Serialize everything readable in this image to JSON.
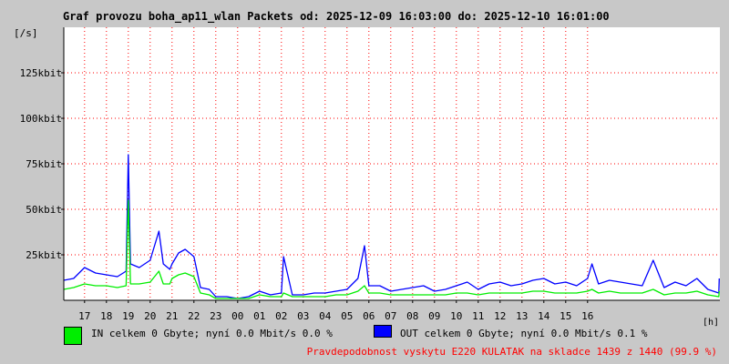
{
  "colors": {
    "in": "#00ee00",
    "out": "#0000ff",
    "footer": "#ff0000",
    "grid": "#ff0000",
    "plot_bg": "#ffffff"
  },
  "header": {
    "title": "Graf provozu boha_ap11_wlan Packets od: 2025-12-09 16:03:00 do: 2025-12-10 16:01:00"
  },
  "legend": {
    "in_label": "IN celkem 0 Gbyte; nyní   0.0 Mbit/s 0.0 %",
    "out_label": "OUT celkem 0 Gbyte; nyní   0.0 Mbit/s 0.1 %"
  },
  "footer": {
    "text": "Pravdepodobnost vyskytu E220 KULATAK na skladce 1439 z 1440 (99.9 %)"
  },
  "chart_data": {
    "type": "area",
    "title": "Graf provozu boha_ap11_wlan Packets od: 2025-12-09 16:03:00 do: 2025-12-10 16:01:00",
    "ylabel": "[/s]",
    "xlabel": "[h]",
    "ylim": [
      0,
      150
    ],
    "ytick_values": [
      25,
      50,
      75,
      100,
      125
    ],
    "yticks": [
      "25kbit",
      "50kbit",
      "75kbit",
      "100kbit",
      "125kbit"
    ],
    "x_hours": [
      16.05,
      16.5,
      17,
      17.5,
      18,
      18.5,
      18.9,
      19,
      19.1,
      19.5,
      20,
      20.4,
      20.6,
      20.9,
      21,
      21.3,
      21.6,
      22,
      22.3,
      22.7,
      23,
      23.5,
      24,
      24.5,
      25,
      25.5,
      26,
      26.1,
      26.5,
      27,
      27.5,
      28,
      28.5,
      29,
      29.5,
      29.8,
      30,
      30.5,
      31,
      31.5,
      32,
      32.5,
      33,
      33.5,
      34,
      34.5,
      35,
      35.5,
      36,
      36.5,
      37,
      37.5,
      38,
      38.5,
      39,
      39.5,
      40,
      40.2,
      40.5,
      41,
      41.5,
      42,
      42.5,
      43,
      43.5,
      44,
      44.5,
      45,
      45.5,
      46,
      46.02
    ],
    "xtick_values": [
      17,
      18,
      19,
      20,
      21,
      22,
      23,
      24,
      25,
      26,
      27,
      28,
      29,
      30,
      31,
      32,
      33,
      34,
      35,
      36,
      37,
      38,
      39,
      40
    ],
    "xticks": [
      "17",
      "18",
      "19",
      "20",
      "21",
      "22",
      "23",
      "00",
      "01",
      "02",
      "03",
      "04",
      "05",
      "06",
      "07",
      "08",
      "09",
      "10",
      "11",
      "12",
      "13",
      "14",
      "15",
      "16"
    ],
    "series": [
      {
        "name": "OUT",
        "values": [
          11,
          12,
          18,
          15,
          14,
          13,
          16,
          80,
          20,
          18,
          22,
          38,
          20,
          17,
          20,
          26,
          28,
          24,
          7,
          6,
          2,
          2,
          1,
          2,
          5,
          3,
          4,
          24,
          3,
          3,
          4,
          4,
          5,
          6,
          12,
          30,
          8,
          8,
          5,
          6,
          7,
          8,
          5,
          6,
          8,
          10,
          6,
          9,
          10,
          8,
          9,
          11,
          12,
          9,
          10,
          8,
          12,
          20,
          9,
          11,
          10,
          9,
          8,
          22,
          7,
          10,
          8,
          12,
          6,
          4,
          12
        ]
      },
      {
        "name": "IN",
        "values": [
          6,
          7,
          9,
          8,
          8,
          7,
          8,
          55,
          9,
          9,
          10,
          16,
          9,
          9,
          12,
          14,
          15,
          13,
          4,
          3,
          1,
          1,
          1,
          1,
          3,
          2,
          2,
          4,
          2,
          2,
          2,
          2,
          3,
          3,
          5,
          8,
          4,
          4,
          3,
          3,
          3,
          3,
          3,
          3,
          4,
          4,
          3,
          4,
          4,
          4,
          4,
          5,
          5,
          4,
          4,
          4,
          5,
          6,
          4,
          5,
          4,
          4,
          4,
          6,
          3,
          4,
          4,
          5,
          3,
          2,
          5
        ]
      }
    ],
    "grid": true,
    "legend_position": "bottom"
  }
}
